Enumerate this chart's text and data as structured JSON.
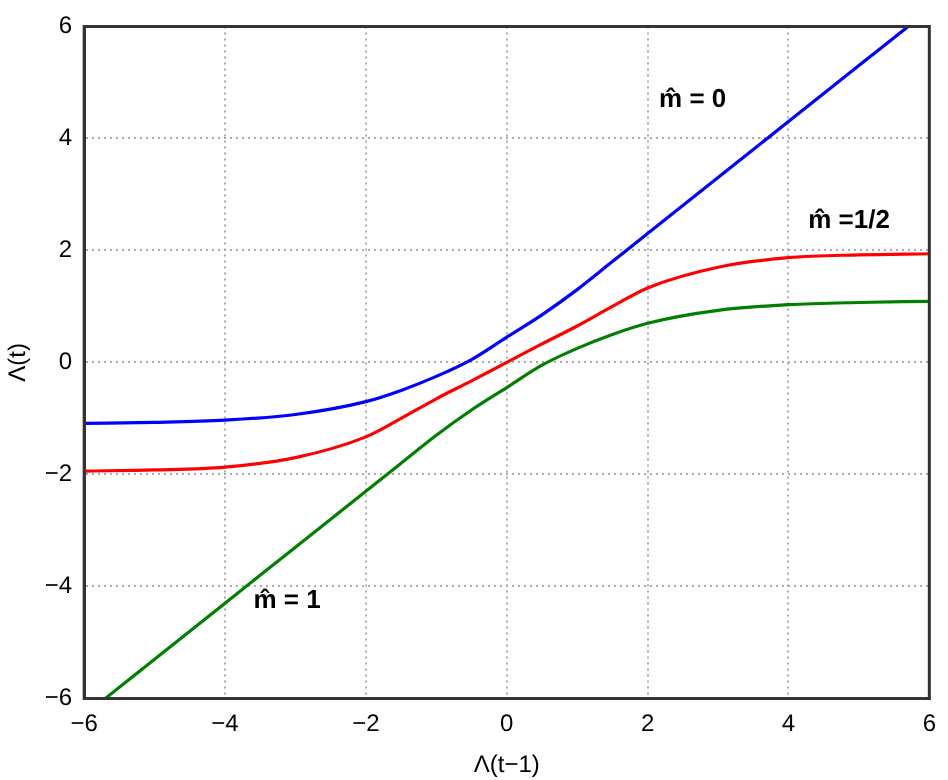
{
  "chart_data": {
    "type": "line",
    "xlabel": "Λ(t−1)",
    "ylabel": "Λ(t)",
    "xlim": [
      -6,
      6
    ],
    "ylim": [
      -6,
      6
    ],
    "xticks": [
      -6,
      -4,
      -2,
      0,
      2,
      4,
      6
    ],
    "yticks": [
      -6,
      -4,
      -2,
      0,
      2,
      4,
      6
    ],
    "grid": true,
    "legend": false,
    "marker": "none",
    "line_style": "solid",
    "series": [
      {
        "name": "m̂ = 0",
        "color": "#0000ff",
        "x": [
          -6,
          -5,
          -4,
          -3,
          -2,
          -1.5,
          -1,
          -0.5,
          0,
          0.5,
          1,
          1.5,
          2,
          3,
          4,
          5,
          5.7
        ],
        "values": [
          -1.09,
          -1.07,
          -1.03,
          -0.93,
          -0.7,
          -0.5,
          -0.25,
          0.05,
          0.45,
          0.85,
          1.3,
          1.8,
          2.3,
          3.3,
          4.3,
          5.3,
          6
        ]
      },
      {
        "name": "m̂ =1/2",
        "color": "#ff0000",
        "x": [
          -6,
          -5,
          -4,
          -3,
          -2,
          -1.5,
          -1,
          -0.5,
          0,
          0.5,
          1,
          1.5,
          2,
          3,
          4,
          5,
          6
        ],
        "values": [
          -1.94,
          -1.92,
          -1.87,
          -1.7,
          -1.33,
          -1.0,
          -0.65,
          -0.33,
          0,
          0.33,
          0.65,
          1.0,
          1.33,
          1.7,
          1.87,
          1.92,
          1.94
        ]
      },
      {
        "name": "m̂ = 1",
        "color": "#008000",
        "x": [
          -5.7,
          -5,
          -4,
          -3,
          -2,
          -1.5,
          -1,
          -0.5,
          0,
          0.5,
          1,
          1.5,
          2,
          3,
          4,
          5,
          6
        ],
        "values": [
          -6,
          -5.3,
          -4.3,
          -3.3,
          -2.3,
          -1.8,
          -1.3,
          -0.85,
          -0.45,
          -0.05,
          0.25,
          0.5,
          0.7,
          0.93,
          1.03,
          1.07,
          1.09
        ]
      }
    ]
  }
}
